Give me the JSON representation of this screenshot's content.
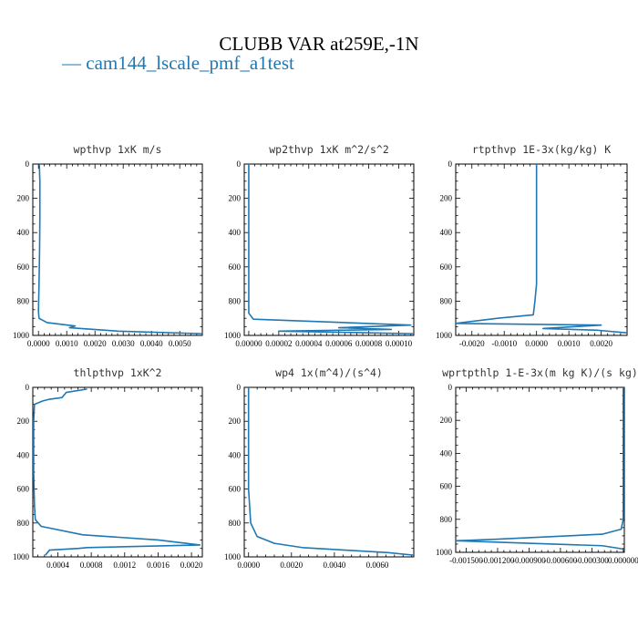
{
  "title": "CLUBB VAR at259E,-1N",
  "legend": [
    {
      "label": "— cam144_lscale_pmf_a1test",
      "color": "#1f77b4"
    }
  ],
  "chart_data": [
    {
      "type": "line",
      "title": "wpthvp  1xK m/s",
      "xlim": [
        -0.0002,
        0.0058
      ],
      "ylim": [
        1000,
        0
      ],
      "xticks": [
        0,
        0.001,
        0.002,
        0.003,
        0.004,
        0.005
      ],
      "xtick_labels": [
        "0.0000",
        "0.0010",
        "0.0020",
        "0.0030",
        "0.0040",
        "0.0050"
      ],
      "yticks": [
        0,
        200,
        400,
        600,
        800,
        1000
      ],
      "ytick_labels": [
        "0",
        "200",
        "400",
        "600",
        "800",
        "1000"
      ],
      "series": [
        {
          "color": "#1f77b4",
          "x": [
            3e-05,
            5e-05,
            5e-05,
            4e-05,
            2e-05,
            0.0,
            2e-05,
            0.0003,
            0.0013,
            0.0011,
            0.0028,
            0.0058
          ],
          "y": [
            0,
            100,
            300,
            500,
            700,
            860,
            900,
            925,
            945,
            955,
            975,
            990
          ]
        }
      ]
    },
    {
      "type": "line",
      "title": "wp2thvp  1xK m^2/s^2",
      "xlim": [
        -3e-06,
        0.00011
      ],
      "ylim": [
        1000,
        0
      ],
      "xticks": [
        0,
        2e-05,
        4e-05,
        6e-05,
        8e-05,
        0.0001
      ],
      "xtick_labels": [
        "0.00000",
        "0.00002",
        "0.00004",
        "0.00006",
        "0.00008",
        "0.00010"
      ],
      "yticks": [
        0,
        200,
        400,
        600,
        800,
        1000
      ],
      "ytick_labels": [
        "0",
        "200",
        "400",
        "600",
        "800",
        "1000"
      ],
      "series": [
        {
          "color": "#1f77b4",
          "x": [
            0.0,
            0.0,
            0.0,
            0.0,
            0.0,
            0.0,
            3e-06,
            0.000108,
            6e-05,
            9.5e-05,
            2e-05,
            0.00011
          ],
          "y": [
            0,
            200,
            400,
            600,
            800,
            870,
            905,
            940,
            955,
            965,
            975,
            990
          ]
        }
      ]
    },
    {
      "type": "line",
      "title": "rtpthvp  1E-3x(kg/kg) K",
      "xlim": [
        -0.0025,
        0.0028
      ],
      "ylim": [
        1000,
        0
      ],
      "xticks": [
        -0.002,
        -0.001,
        0,
        0.001,
        0.002
      ],
      "xtick_labels": [
        "-0.0020",
        "-0.0010",
        "0.0000",
        "0.0010",
        "0.0020"
      ],
      "yticks": [
        0,
        200,
        400,
        600,
        800,
        1000
      ],
      "ytick_labels": [
        "0",
        "200",
        "400",
        "600",
        "800",
        "1000"
      ],
      "series": [
        {
          "color": "#1f77b4",
          "x": [
            0.0,
            0.0,
            0.0,
            -5e-05,
            -0.0001,
            -0.0012,
            -0.0025,
            0.002,
            0.0002,
            0.0019,
            0.0028
          ],
          "y": [
            0,
            400,
            700,
            800,
            880,
            900,
            930,
            940,
            960,
            970,
            985
          ]
        }
      ]
    },
    {
      "type": "line",
      "title": "thlpthvp  1xK^2",
      "xlim": [
        0.0001,
        0.00213
      ],
      "ylim": [
        1000,
        0
      ],
      "xticks": [
        0.0004,
        0.0008,
        0.0012,
        0.0016,
        0.002
      ],
      "xtick_labels": [
        "0.0004",
        "0.0008",
        "0.0012",
        "0.0016",
        "0.0020"
      ],
      "yticks": [
        0,
        200,
        400,
        600,
        800,
        1000
      ],
      "ytick_labels": [
        "0",
        "200",
        "400",
        "600",
        "800",
        "1000"
      ],
      "series": [
        {
          "color": "#1f77b4",
          "x": [
            0.00075,
            0.0005,
            0.00045,
            0.0003,
            0.00022,
            0.00012,
            0.00011,
            0.00011,
            0.00012,
            0.00013,
            0.0002,
            0.0007,
            0.0016,
            0.0021,
            0.00075,
            0.00065,
            0.0003,
            0.00025
          ],
          "y": [
            10,
            30,
            60,
            70,
            80,
            100,
            200,
            500,
            700,
            780,
            820,
            870,
            900,
            930,
            945,
            950,
            960,
            990
          ]
        }
      ]
    },
    {
      "type": "line",
      "title": "wp4  1x(m^4)/(s^4)",
      "xlim": [
        -0.0002,
        0.0077
      ],
      "ylim": [
        1000,
        0
      ],
      "xticks": [
        0,
        0.002,
        0.004,
        0.006
      ],
      "xtick_labels": [
        "0.0000",
        "0.0020",
        "0.0040",
        "0.0060"
      ],
      "yticks": [
        0,
        200,
        400,
        600,
        800,
        1000
      ],
      "ytick_labels": [
        "0",
        "200",
        "400",
        "600",
        "800",
        "1000"
      ],
      "series": [
        {
          "color": "#1f77b4",
          "x": [
            0.0,
            0.0,
            0.0,
            0.0,
            0.0001,
            0.0004,
            0.0012,
            0.0025,
            0.0045,
            0.0065,
            0.0077
          ],
          "y": [
            0,
            200,
            400,
            600,
            800,
            880,
            920,
            945,
            960,
            975,
            990
          ]
        }
      ]
    },
    {
      "type": "line",
      "title": "wprtpthlp  1-E-3x(m kg K)/(s kg)",
      "xlim": [
        -0.0016,
        1e-05
      ],
      "ylim": [
        1000,
        0
      ],
      "xticks": [
        -0.0015,
        -0.0012,
        -0.0009,
        -0.0006,
        -0.0003,
        0
      ],
      "xtick_labels": [
        "-0.001500",
        "-0.001200",
        "-0.000900",
        "-0.000600",
        "-0.000300",
        "0.000000"
      ],
      "yticks": [
        0,
        200,
        400,
        600,
        800,
        1000
      ],
      "ytick_labels": [
        "0",
        "200",
        "400",
        "600",
        "800",
        "1000"
      ],
      "series": [
        {
          "color": "#1f77b4",
          "x": [
            0.0,
            0.0,
            0.0,
            0.0,
            -2e-05,
            -0.0002,
            -0.0012,
            -0.0016,
            -0.0009,
            -0.0002,
            0.0
          ],
          "y": [
            0,
            200,
            500,
            800,
            860,
            890,
            920,
            930,
            945,
            960,
            980
          ]
        }
      ]
    }
  ]
}
